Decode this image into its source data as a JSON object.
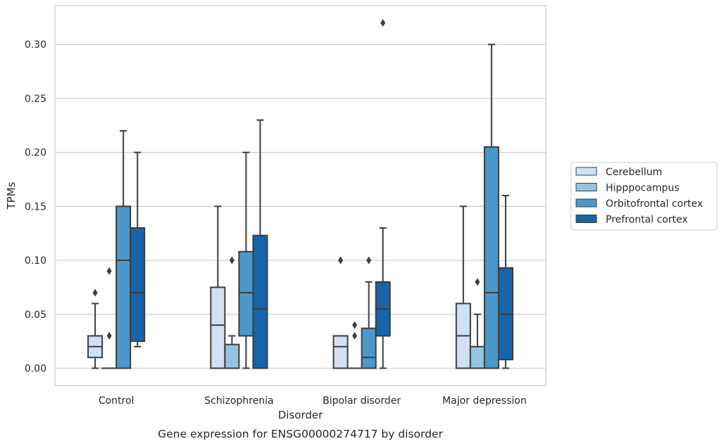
{
  "chart_data": {
    "type": "boxplot",
    "title": "",
    "caption": "Gene expression for ENSG00000274717 by disorder",
    "xlabel": "Disorder",
    "ylabel": "TPMs",
    "ylim": [
      -0.016,
      0.336
    ],
    "yticks": [
      "0.00",
      "0.05",
      "0.10",
      "0.15",
      "0.20",
      "0.25",
      "0.30"
    ],
    "grid": "horizontal",
    "legend_placement": "right",
    "categories": [
      "Control",
      "Schizophrenia",
      "Bipolar disorder",
      "Major depression"
    ],
    "series": [
      {
        "name": "Cerebellum",
        "color": "#d0e1f2",
        "boxes": [
          {
            "whislo": 0.0,
            "q1": 0.01,
            "med": 0.02,
            "q3": 0.03,
            "whishi": 0.06,
            "fliers": [
              0.07
            ]
          },
          {
            "whislo": 0.0,
            "q1": 0.0,
            "med": 0.04,
            "q3": 0.075,
            "whishi": 0.15,
            "fliers": []
          },
          {
            "whislo": 0.0,
            "q1": 0.0,
            "med": 0.02,
            "q3": 0.03,
            "whishi": 0.03,
            "fliers": [
              0.1
            ]
          },
          {
            "whislo": 0.0,
            "q1": 0.0,
            "med": 0.03,
            "q3": 0.06,
            "whishi": 0.15,
            "fliers": []
          }
        ]
      },
      {
        "name": "Hipppocampus",
        "color": "#94c4df",
        "boxes": [
          {
            "whislo": 0.0,
            "q1": 0.0,
            "med": 0.0,
            "q3": 0.0,
            "whishi": 0.0,
            "fliers": [
              0.03,
              0.09
            ]
          },
          {
            "whislo": 0.0,
            "q1": 0.0,
            "med": 0.0,
            "q3": 0.022,
            "whishi": 0.03,
            "fliers": [
              0.1
            ]
          },
          {
            "whislo": 0.0,
            "q1": 0.0,
            "med": 0.0,
            "q3": 0.0,
            "whishi": 0.0,
            "fliers": [
              0.03,
              0.04
            ]
          },
          {
            "whislo": 0.0,
            "q1": 0.0,
            "med": 0.0,
            "q3": 0.02,
            "whishi": 0.05,
            "fliers": [
              0.08
            ]
          }
        ]
      },
      {
        "name": "Orbitofrontal cortex",
        "color": "#4a98c9",
        "boxes": [
          {
            "whislo": 0.0,
            "q1": 0.0,
            "med": 0.1,
            "q3": 0.15,
            "whishi": 0.22,
            "fliers": []
          },
          {
            "whislo": 0.0,
            "q1": 0.03,
            "med": 0.07,
            "q3": 0.108,
            "whishi": 0.2,
            "fliers": []
          },
          {
            "whislo": 0.0,
            "q1": 0.0,
            "med": 0.01,
            "q3": 0.037,
            "whishi": 0.08,
            "fliers": [
              0.1
            ]
          },
          {
            "whislo": 0.0,
            "q1": 0.0,
            "med": 0.07,
            "q3": 0.205,
            "whishi": 0.3,
            "fliers": []
          }
        ]
      },
      {
        "name": "Prefrontal cortex",
        "color": "#1764ab",
        "boxes": [
          {
            "whislo": 0.02,
            "q1": 0.025,
            "med": 0.07,
            "q3": 0.13,
            "whishi": 0.2,
            "fliers": []
          },
          {
            "whislo": 0.0,
            "q1": 0.0,
            "med": 0.055,
            "q3": 0.123,
            "whishi": 0.23,
            "fliers": []
          },
          {
            "whislo": 0.0,
            "q1": 0.03,
            "med": 0.055,
            "q3": 0.08,
            "whishi": 0.13,
            "fliers": [
              0.32
            ]
          },
          {
            "whislo": 0.0,
            "q1": 0.008,
            "med": 0.05,
            "q3": 0.093,
            "whishi": 0.16,
            "fliers": []
          }
        ]
      }
    ]
  }
}
